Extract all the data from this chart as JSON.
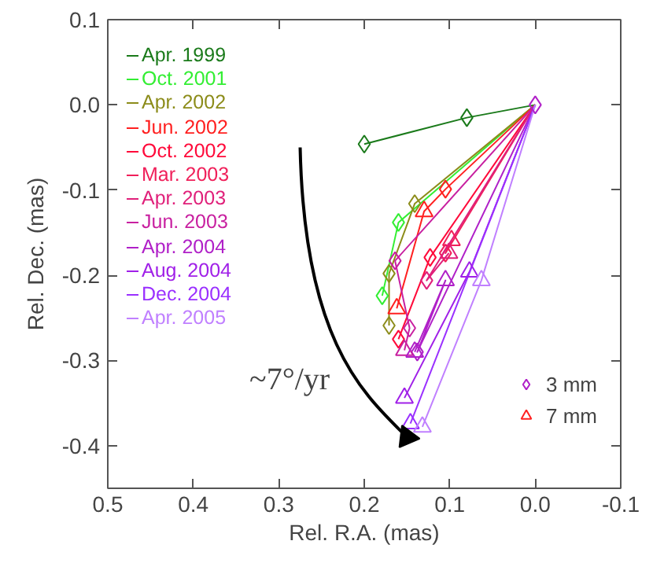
{
  "chart_data": {
    "type": "line",
    "xlabel": "Rel. R.A. (mas)",
    "ylabel": "Rel. Dec. (mas)",
    "xlim": [
      0.5,
      -0.1
    ],
    "ylim": [
      -0.45,
      0.1
    ],
    "xticks": [
      0.5,
      0.4,
      0.3,
      0.2,
      0.1,
      {
        "value": 0,
        "label": "0.0"
      },
      -0.1
    ],
    "yticks": [
      -0.4,
      -0.3,
      -0.2,
      -0.1,
      {
        "value": 0,
        "label": "0.0"
      },
      0.1
    ],
    "grid": false,
    "legend": "top left",
    "marker": "none",
    "line_style": "solid",
    "annotations": [
      "~7°/yr"
    ],
    "series": [
      {
        "name": "Apr. 1999",
        "color": "#1a7a1a",
        "x": [
          0,
          0.08,
          0.2
        ],
        "values": [
          0,
          -0.015,
          -0.046
        ]
      },
      {
        "name": "Oct. 2001",
        "color": "#33ee33",
        "x": [
          0,
          0.16,
          0.179
        ],
        "values": [
          0,
          -0.138,
          -0.224
        ]
      },
      {
        "name": "Apr. 2002",
        "color": "#8c8c1a",
        "x": [
          0,
          0.141,
          0.171,
          0.171
        ],
        "values": [
          0,
          -0.116,
          -0.198,
          -0.259
        ]
      },
      {
        "name": "Jun. 2002",
        "color": "#ff2020",
        "x": [
          0,
          0.105,
          0.13,
          0.162
        ],
        "values": [
          0,
          -0.099,
          -0.125,
          -0.239
        ]
      },
      {
        "name": "Oct. 2002",
        "color": "#ff0a3a",
        "x": [
          0,
          0.123,
          0.16
        ],
        "values": [
          0,
          -0.179,
          -0.275
        ]
      },
      {
        "name": "Mar. 2003",
        "color": "#f0205a",
        "x": [
          0,
          0.105,
          0.098
        ],
        "values": [
          0,
          -0.174,
          -0.159
        ]
      },
      {
        "name": "Apr. 2003",
        "color": "#e0207a",
        "x": [
          0,
          0.127,
          0.101
        ],
        "values": [
          0,
          -0.206,
          -0.174
        ]
      },
      {
        "name": "Jun. 2003",
        "color": "#c820a0",
        "x": [
          0,
          0.164,
          0.147,
          0.153
        ],
        "values": [
          0,
          -0.183,
          -0.262,
          -0.288
        ]
      },
      {
        "name": "Apr. 2004",
        "color": "#b020c8",
        "x": [
          0,
          0.138,
          0.105,
          0.141
        ],
        "values": [
          0,
          -0.29,
          -0.206,
          -0.29
        ]
      },
      {
        "name": "Aug. 2004",
        "color": "#a020e8",
        "x": [
          0,
          0.077,
          0.153
        ],
        "values": [
          0,
          -0.196,
          -0.344
        ]
      },
      {
        "name": "Dec. 2004",
        "color": "#9a30ff",
        "x": [
          0,
          0.146
        ],
        "values": [
          0,
          -0.374
        ]
      },
      {
        "name": "Apr. 2005",
        "color": "#c080ff",
        "x": [
          0,
          0.063,
          0.132
        ],
        "values": [
          0,
          -0.206,
          -0.378
        ]
      },
      {
        "name": "3 mm",
        "type": "scatter",
        "marker": "diamond",
        "x": [
          0,
          0.08,
          0.2,
          0.16,
          0.179,
          0.141,
          0.171,
          0.171,
          0.105,
          0.123,
          0.16,
          0.105,
          0.127,
          0.164,
          0.147,
          0.138
        ],
        "values": [
          0,
          -0.015,
          -0.046,
          -0.138,
          -0.224,
          -0.116,
          -0.198,
          -0.259,
          -0.099,
          -0.179,
          -0.275,
          -0.174,
          -0.206,
          -0.183,
          -0.262,
          -0.29
        ],
        "colors": [
          "#b020c8",
          "#1a7a1a",
          "#1a7a1a",
          "#33ee33",
          "#33ee33",
          "#8c8c1a",
          "#8c8c1a",
          "#8c8c1a",
          "#ff2020",
          "#ff0a3a",
          "#ff0a3a",
          "#f0205a",
          "#e0207a",
          "#c820a0",
          "#c820a0",
          "#b020c8"
        ]
      },
      {
        "name": "7 mm",
        "type": "scatter",
        "marker": "triangle",
        "x": [
          0.13,
          0.162,
          0.098,
          0.101,
          0.153,
          0.105,
          0.141,
          0.077,
          0.153,
          0.146,
          0.063,
          0.132
        ],
        "values": [
          -0.125,
          -0.239,
          -0.159,
          -0.174,
          -0.288,
          -0.206,
          -0.29,
          -0.196,
          -0.344,
          -0.374,
          -0.206,
          -0.378
        ],
        "colors": [
          "#ff2020",
          "#ff2020",
          "#f0205a",
          "#e0207a",
          "#c820a0",
          "#b020c8",
          "#b020c8",
          "#a020e8",
          "#a020e8",
          "#9a30ff",
          "#c080ff",
          "#c080ff"
        ]
      }
    ]
  }
}
